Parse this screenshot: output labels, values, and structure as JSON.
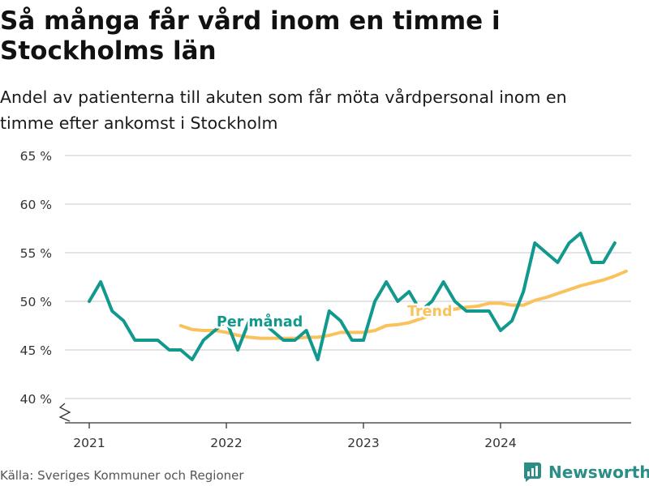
{
  "title": "Så många får vård inom en timme i Stockholms län",
  "subtitle": "Andel av patienterna till akuten som får möta vårdpersonal inom en timme efter ankomst i Stockholm",
  "source": "Källa: Sveriges Kommuner och Regioner",
  "brand": {
    "name": "Newsworthy",
    "icon": "bar-chart-logo-icon",
    "color": "#2a8d86"
  },
  "chart_data": {
    "type": "line",
    "xlabel": "",
    "ylabel": "",
    "ylim": [
      38,
      65
    ],
    "yticks": [
      40,
      45,
      50,
      55,
      60,
      65
    ],
    "ytick_labels": [
      "40 %",
      "45 %",
      "50 %",
      "55 %",
      "60 %",
      "65 %"
    ],
    "xticks": [
      2021,
      2022,
      2023,
      2024
    ],
    "xtick_labels": [
      "2021",
      "2022",
      "2023",
      "2024"
    ],
    "grid": true,
    "y_axis_break": true,
    "series": [
      {
        "name": "Per månad",
        "color": "#12998e",
        "label_at": "2022-01",
        "points": [
          [
            "2021-01",
            50
          ],
          [
            "2021-02",
            52
          ],
          [
            "2021-03",
            49
          ],
          [
            "2021-04",
            48
          ],
          [
            "2021-05",
            46
          ],
          [
            "2021-06",
            46
          ],
          [
            "2021-07",
            46
          ],
          [
            "2021-08",
            45
          ],
          [
            "2021-09",
            45
          ],
          [
            "2021-10",
            44
          ],
          [
            "2021-11",
            46
          ],
          [
            "2021-12",
            47
          ],
          [
            "2022-01",
            48
          ],
          [
            "2022-02",
            45
          ],
          [
            "2022-03",
            48
          ],
          [
            "2022-04",
            48
          ],
          [
            "2022-05",
            47
          ],
          [
            "2022-06",
            46
          ],
          [
            "2022-07",
            46
          ],
          [
            "2022-08",
            47
          ],
          [
            "2022-09",
            44
          ],
          [
            "2022-10",
            49
          ],
          [
            "2022-11",
            48
          ],
          [
            "2022-12",
            46
          ],
          [
            "2023-01",
            46
          ],
          [
            "2023-02",
            50
          ],
          [
            "2023-03",
            52
          ],
          [
            "2023-04",
            50
          ],
          [
            "2023-05",
            51
          ],
          [
            "2023-06",
            49
          ],
          [
            "2023-07",
            50
          ],
          [
            "2023-08",
            52
          ],
          [
            "2023-09",
            50
          ],
          [
            "2023-10",
            49
          ],
          [
            "2023-11",
            49
          ],
          [
            "2023-12",
            49
          ],
          [
            "2024-01",
            47
          ],
          [
            "2024-02",
            48
          ],
          [
            "2024-03",
            51
          ],
          [
            "2024-04",
            56
          ],
          [
            "2024-05",
            55
          ],
          [
            "2024-06",
            54
          ],
          [
            "2024-07",
            56
          ],
          [
            "2024-08",
            57
          ],
          [
            "2024-09",
            54
          ],
          [
            "2024-10",
            54
          ],
          [
            "2024-11",
            56
          ]
        ]
      },
      {
        "name": "Trend",
        "color": "#f9c25c",
        "label_at": "2023-09",
        "points": [
          [
            "2021-09",
            47.5
          ],
          [
            "2021-10",
            47.1
          ],
          [
            "2021-11",
            47.0
          ],
          [
            "2021-12",
            47.0
          ],
          [
            "2022-01",
            46.8
          ],
          [
            "2022-02",
            46.5
          ],
          [
            "2022-03",
            46.3
          ],
          [
            "2022-04",
            46.2
          ],
          [
            "2022-05",
            46.2
          ],
          [
            "2022-06",
            46.2
          ],
          [
            "2022-07",
            46.2
          ],
          [
            "2022-08",
            46.3
          ],
          [
            "2022-09",
            46.3
          ],
          [
            "2022-10",
            46.5
          ],
          [
            "2022-11",
            46.8
          ],
          [
            "2022-12",
            46.8
          ],
          [
            "2023-01",
            46.8
          ],
          [
            "2023-02",
            47.0
          ],
          [
            "2023-03",
            47.5
          ],
          [
            "2023-04",
            47.6
          ],
          [
            "2023-05",
            47.8
          ],
          [
            "2023-06",
            48.2
          ],
          [
            "2023-07",
            48.6
          ],
          [
            "2023-08",
            49.0
          ],
          [
            "2023-09",
            49.2
          ],
          [
            "2023-10",
            49.4
          ],
          [
            "2023-11",
            49.5
          ],
          [
            "2023-12",
            49.8
          ],
          [
            "2024-01",
            49.8
          ],
          [
            "2024-02",
            49.6
          ],
          [
            "2024-03",
            49.6
          ],
          [
            "2024-04",
            50.1
          ],
          [
            "2024-05",
            50.4
          ],
          [
            "2024-06",
            50.8
          ],
          [
            "2024-07",
            51.2
          ],
          [
            "2024-08",
            51.6
          ],
          [
            "2024-09",
            51.9
          ],
          [
            "2024-10",
            52.2
          ],
          [
            "2024-11",
            52.6
          ],
          [
            "2024-12",
            53.1
          ]
        ]
      }
    ]
  }
}
